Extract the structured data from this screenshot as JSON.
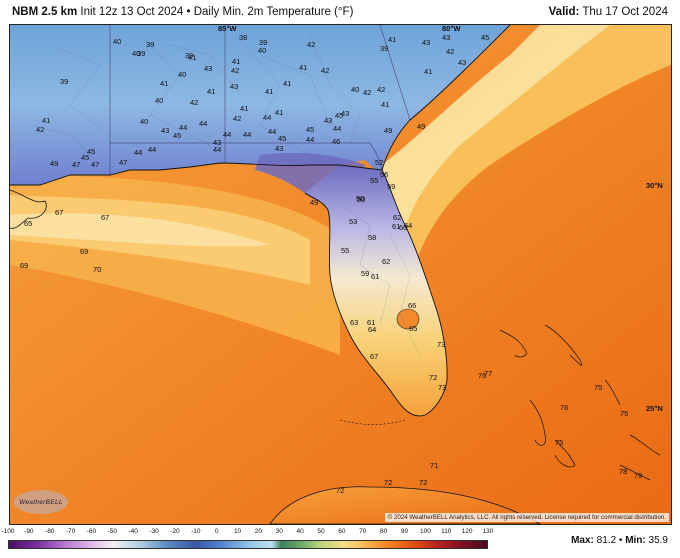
{
  "header": {
    "model": "NBM 2.5 km",
    "description": "Init 12z 13 Oct 2024 • Daily Min. 2m Temperature (°F)",
    "valid_label": "Valid:",
    "valid_value": "Thu 17 Oct 2024"
  },
  "map": {
    "grid_labels": {
      "lon_85": "85°W",
      "lon_80": "80°W",
      "lat_30": "30°N",
      "lat_25": "25°N"
    },
    "labels": [
      {
        "t": "40"
      },
      {
        "t": "39"
      },
      {
        "t": "39"
      },
      {
        "t": "38"
      },
      {
        "t": "39"
      },
      {
        "t": "42"
      },
      {
        "t": "41"
      },
      {
        "t": "43"
      },
      {
        "t": "39"
      },
      {
        "t": "40"
      },
      {
        "t": "41"
      },
      {
        "t": "41"
      },
      {
        "t": "40"
      },
      {
        "t": "42"
      },
      {
        "t": "43"
      },
      {
        "t": "42"
      },
      {
        "t": "45"
      },
      {
        "t": "43"
      },
      {
        "t": "39"
      },
      {
        "t": "41"
      },
      {
        "t": "43"
      },
      {
        "t": "42"
      },
      {
        "t": "40"
      },
      {
        "t": "41"
      },
      {
        "t": "41"
      },
      {
        "t": "40"
      },
      {
        "t": "42"
      },
      {
        "t": "41"
      },
      {
        "t": "40"
      },
      {
        "t": "43"
      },
      {
        "t": "39"
      },
      {
        "t": "41"
      },
      {
        "t": "42"
      },
      {
        "t": "40"
      },
      {
        "t": "41"
      },
      {
        "t": "41"
      },
      {
        "t": "42"
      },
      {
        "t": "41"
      },
      {
        "t": "44"
      },
      {
        "t": "44"
      },
      {
        "t": "43"
      },
      {
        "t": "45"
      },
      {
        "t": "44"
      },
      {
        "t": "43"
      },
      {
        "t": "41"
      },
      {
        "t": "44"
      },
      {
        "t": "42"
      },
      {
        "t": "41"
      },
      {
        "t": "43"
      },
      {
        "t": "42"
      },
      {
        "t": "44"
      },
      {
        "t": "45"
      },
      {
        "t": "44"
      },
      {
        "t": "44"
      },
      {
        "t": "45"
      },
      {
        "t": "43"
      },
      {
        "t": "44"
      },
      {
        "t": "46"
      },
      {
        "t": "43"
      },
      {
        "t": "45"
      },
      {
        "t": "44"
      },
      {
        "t": "44"
      },
      {
        "t": "44"
      },
      {
        "t": "49"
      },
      {
        "t": "45"
      },
      {
        "t": "45"
      },
      {
        "t": "47"
      },
      {
        "t": "47"
      },
      {
        "t": "47"
      },
      {
        "t": "49"
      },
      {
        "t": "52"
      },
      {
        "t": "56"
      },
      {
        "t": "55"
      },
      {
        "t": "59"
      },
      {
        "t": "50"
      },
      {
        "t": "50"
      },
      {
        "t": "49"
      },
      {
        "t": "53"
      },
      {
        "t": "62"
      },
      {
        "t": "61"
      },
      {
        "t": "60"
      },
      {
        "t": "64"
      },
      {
        "t": "58"
      },
      {
        "t": "55"
      },
      {
        "t": "62"
      },
      {
        "t": "59"
      },
      {
        "t": "61"
      },
      {
        "t": "66"
      },
      {
        "t": "61"
      },
      {
        "t": "63"
      },
      {
        "t": "64"
      },
      {
        "t": "65"
      },
      {
        "t": "67"
      },
      {
        "t": "73"
      },
      {
        "t": "72"
      },
      {
        "t": "73"
      },
      {
        "t": "76"
      },
      {
        "t": "77"
      },
      {
        "t": "75"
      },
      {
        "t": "76"
      },
      {
        "t": "75"
      },
      {
        "t": "75"
      },
      {
        "t": "78"
      },
      {
        "t": "79"
      },
      {
        "t": "49"
      },
      {
        "t": "67"
      },
      {
        "t": "67"
      },
      {
        "t": "65"
      },
      {
        "t": "69"
      },
      {
        "t": "69"
      },
      {
        "t": "70"
      },
      {
        "t": "72"
      },
      {
        "t": "72"
      },
      {
        "t": "72"
      },
      {
        "t": "71"
      }
    ]
  },
  "footer": {
    "copyright": "© 2024 WeatherBELL Analytics, LLC. All rights reserved. License required for commercial distribution.",
    "logo_text": "WeatherBELL",
    "max_label": "Max:",
    "max_value": "81.2",
    "min_label": "Min:",
    "min_value": "35.9",
    "scale_ticks": [
      "-100",
      "-90",
      "-80",
      "-70",
      "-60",
      "-50",
      "-40",
      "-30",
      "-20",
      "-10",
      "0",
      "10",
      "20",
      "30",
      "40",
      "50",
      "60",
      "70",
      "80",
      "90",
      "100",
      "110",
      "120",
      "130"
    ]
  },
  "colors": {
    "cold": "#5e8dd0",
    "cool": "#8fc1e5",
    "mild": "#f7d68a",
    "warm": "#f59a2b",
    "hot": "#ea6a14",
    "land_cold_purple": "#6d6bbf"
  }
}
